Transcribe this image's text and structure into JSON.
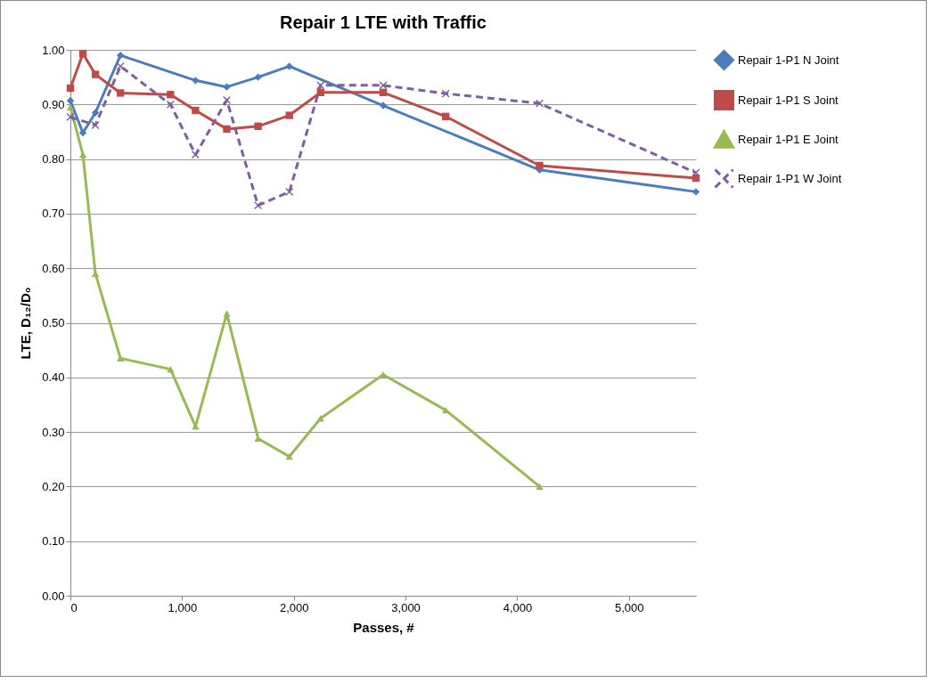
{
  "chart_data": {
    "type": "line",
    "title": "Repair 1 LTE with Traffic",
    "xlabel": "Passes, #",
    "ylabel": "LTE, D₁₂/D₀",
    "xlim": [
      0,
      5600
    ],
    "xticks": [
      0,
      {
        "value": 1000,
        "label": "1,000"
      },
      {
        "value": 2000,
        "label": "2,000"
      },
      {
        "value": 3000,
        "label": "3,000"
      },
      {
        "value": 4000,
        "label": "4,000"
      },
      {
        "value": 5000,
        "label": "5,000"
      }
    ],
    "ylim": [
      0,
      1
    ],
    "yticks": [
      {
        "value": 0,
        "label": "0.00"
      },
      {
        "value": 0.1,
        "label": "0.10"
      },
      {
        "value": 0.2,
        "label": "0.20"
      },
      {
        "value": 0.3,
        "label": "0.30"
      },
      {
        "value": 0.4,
        "label": "0.40"
      },
      {
        "value": 0.5,
        "label": "0.50"
      },
      {
        "value": 0.6,
        "label": "0.60"
      },
      {
        "value": 0.7,
        "label": "0.70"
      },
      {
        "value": 0.8,
        "label": "0.80"
      },
      {
        "value": 0.9,
        "label": "0.90"
      },
      {
        "value": 1,
        "label": "1.00"
      }
    ],
    "grid": "y",
    "legend": "right",
    "series": [
      {
        "name": "Repair 1-P1 N Joint",
        "color": "#4a7ebb",
        "marker": "diamond",
        "line_style": "solid",
        "x": [
          0,
          112,
          224,
          448,
          1120,
          1400,
          1680,
          1960,
          2800,
          4200,
          5600
        ],
        "values": [
          0.907,
          0.848,
          0.885,
          0.99,
          0.944,
          0.932,
          0.95,
          0.97,
          0.898,
          0.78,
          0.74
        ]
      },
      {
        "name": "Repair 1-P1 S Joint",
        "color": "#be4b48",
        "marker": "square",
        "line_style": "solid",
        "x": [
          0,
          112,
          224,
          448,
          896,
          1120,
          1400,
          1680,
          1960,
          2240,
          2800,
          3360,
          4200,
          5600
        ],
        "values": [
          0.93,
          0.993,
          0.955,
          0.921,
          0.918,
          0.889,
          0.855,
          0.86,
          0.88,
          0.922,
          0.922,
          0.878,
          0.788,
          0.765
        ]
      },
      {
        "name": "Repair 1-P1 E Joint",
        "color": "#98b954",
        "marker": "triangle",
        "line_style": "solid",
        "x": [
          0,
          112,
          224,
          448,
          896,
          1120,
          1400,
          1680,
          1960,
          2240,
          2800,
          3360,
          4200
        ],
        "values": [
          0.895,
          0.808,
          0.59,
          0.435,
          0.415,
          0.31,
          0.517,
          0.288,
          0.255,
          0.325,
          0.405,
          0.34,
          0.2
        ]
      },
      {
        "name": "Repair 1-P1 W Joint",
        "color": "#7d60a0",
        "marker": "cross",
        "line_style": "dashed",
        "x": [
          0,
          224,
          448,
          896,
          1120,
          1400,
          1680,
          1960,
          2240,
          2800,
          3360,
          4200,
          5600
        ],
        "values": [
          0.877,
          0.862,
          0.97,
          0.9,
          0.808,
          0.908,
          0.715,
          0.74,
          0.935,
          0.935,
          0.92,
          0.902,
          0.775
        ]
      }
    ]
  }
}
